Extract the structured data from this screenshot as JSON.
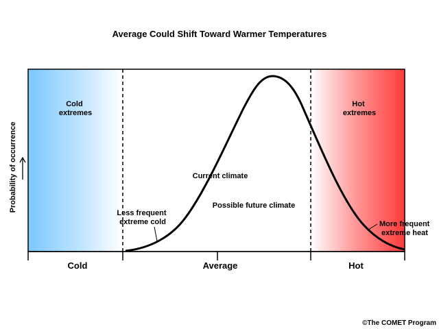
{
  "title": "Average Could Shift Toward Warmer Temperatures",
  "y_axis": {
    "label": "Probability of occurrence",
    "arrow_icon": "up-arrow"
  },
  "x_axis": {
    "categories": [
      "Cold",
      "Average",
      "Hot"
    ]
  },
  "regions": {
    "cold": {
      "line1": "Cold",
      "line2": "extremes",
      "color": "#7cc7ff"
    },
    "hot": {
      "line1": "Hot",
      "line2": "extremes",
      "color": "#ff3a3a"
    }
  },
  "annotations": {
    "current_climate": "Current climate",
    "future_climate": "Possible future climate",
    "less_cold_line1": "Less frequent",
    "less_cold_line2": "extreme cold",
    "more_heat_line1": "More frequent",
    "more_heat_line2": "extreme heat"
  },
  "credit": "©The COMET Program"
}
